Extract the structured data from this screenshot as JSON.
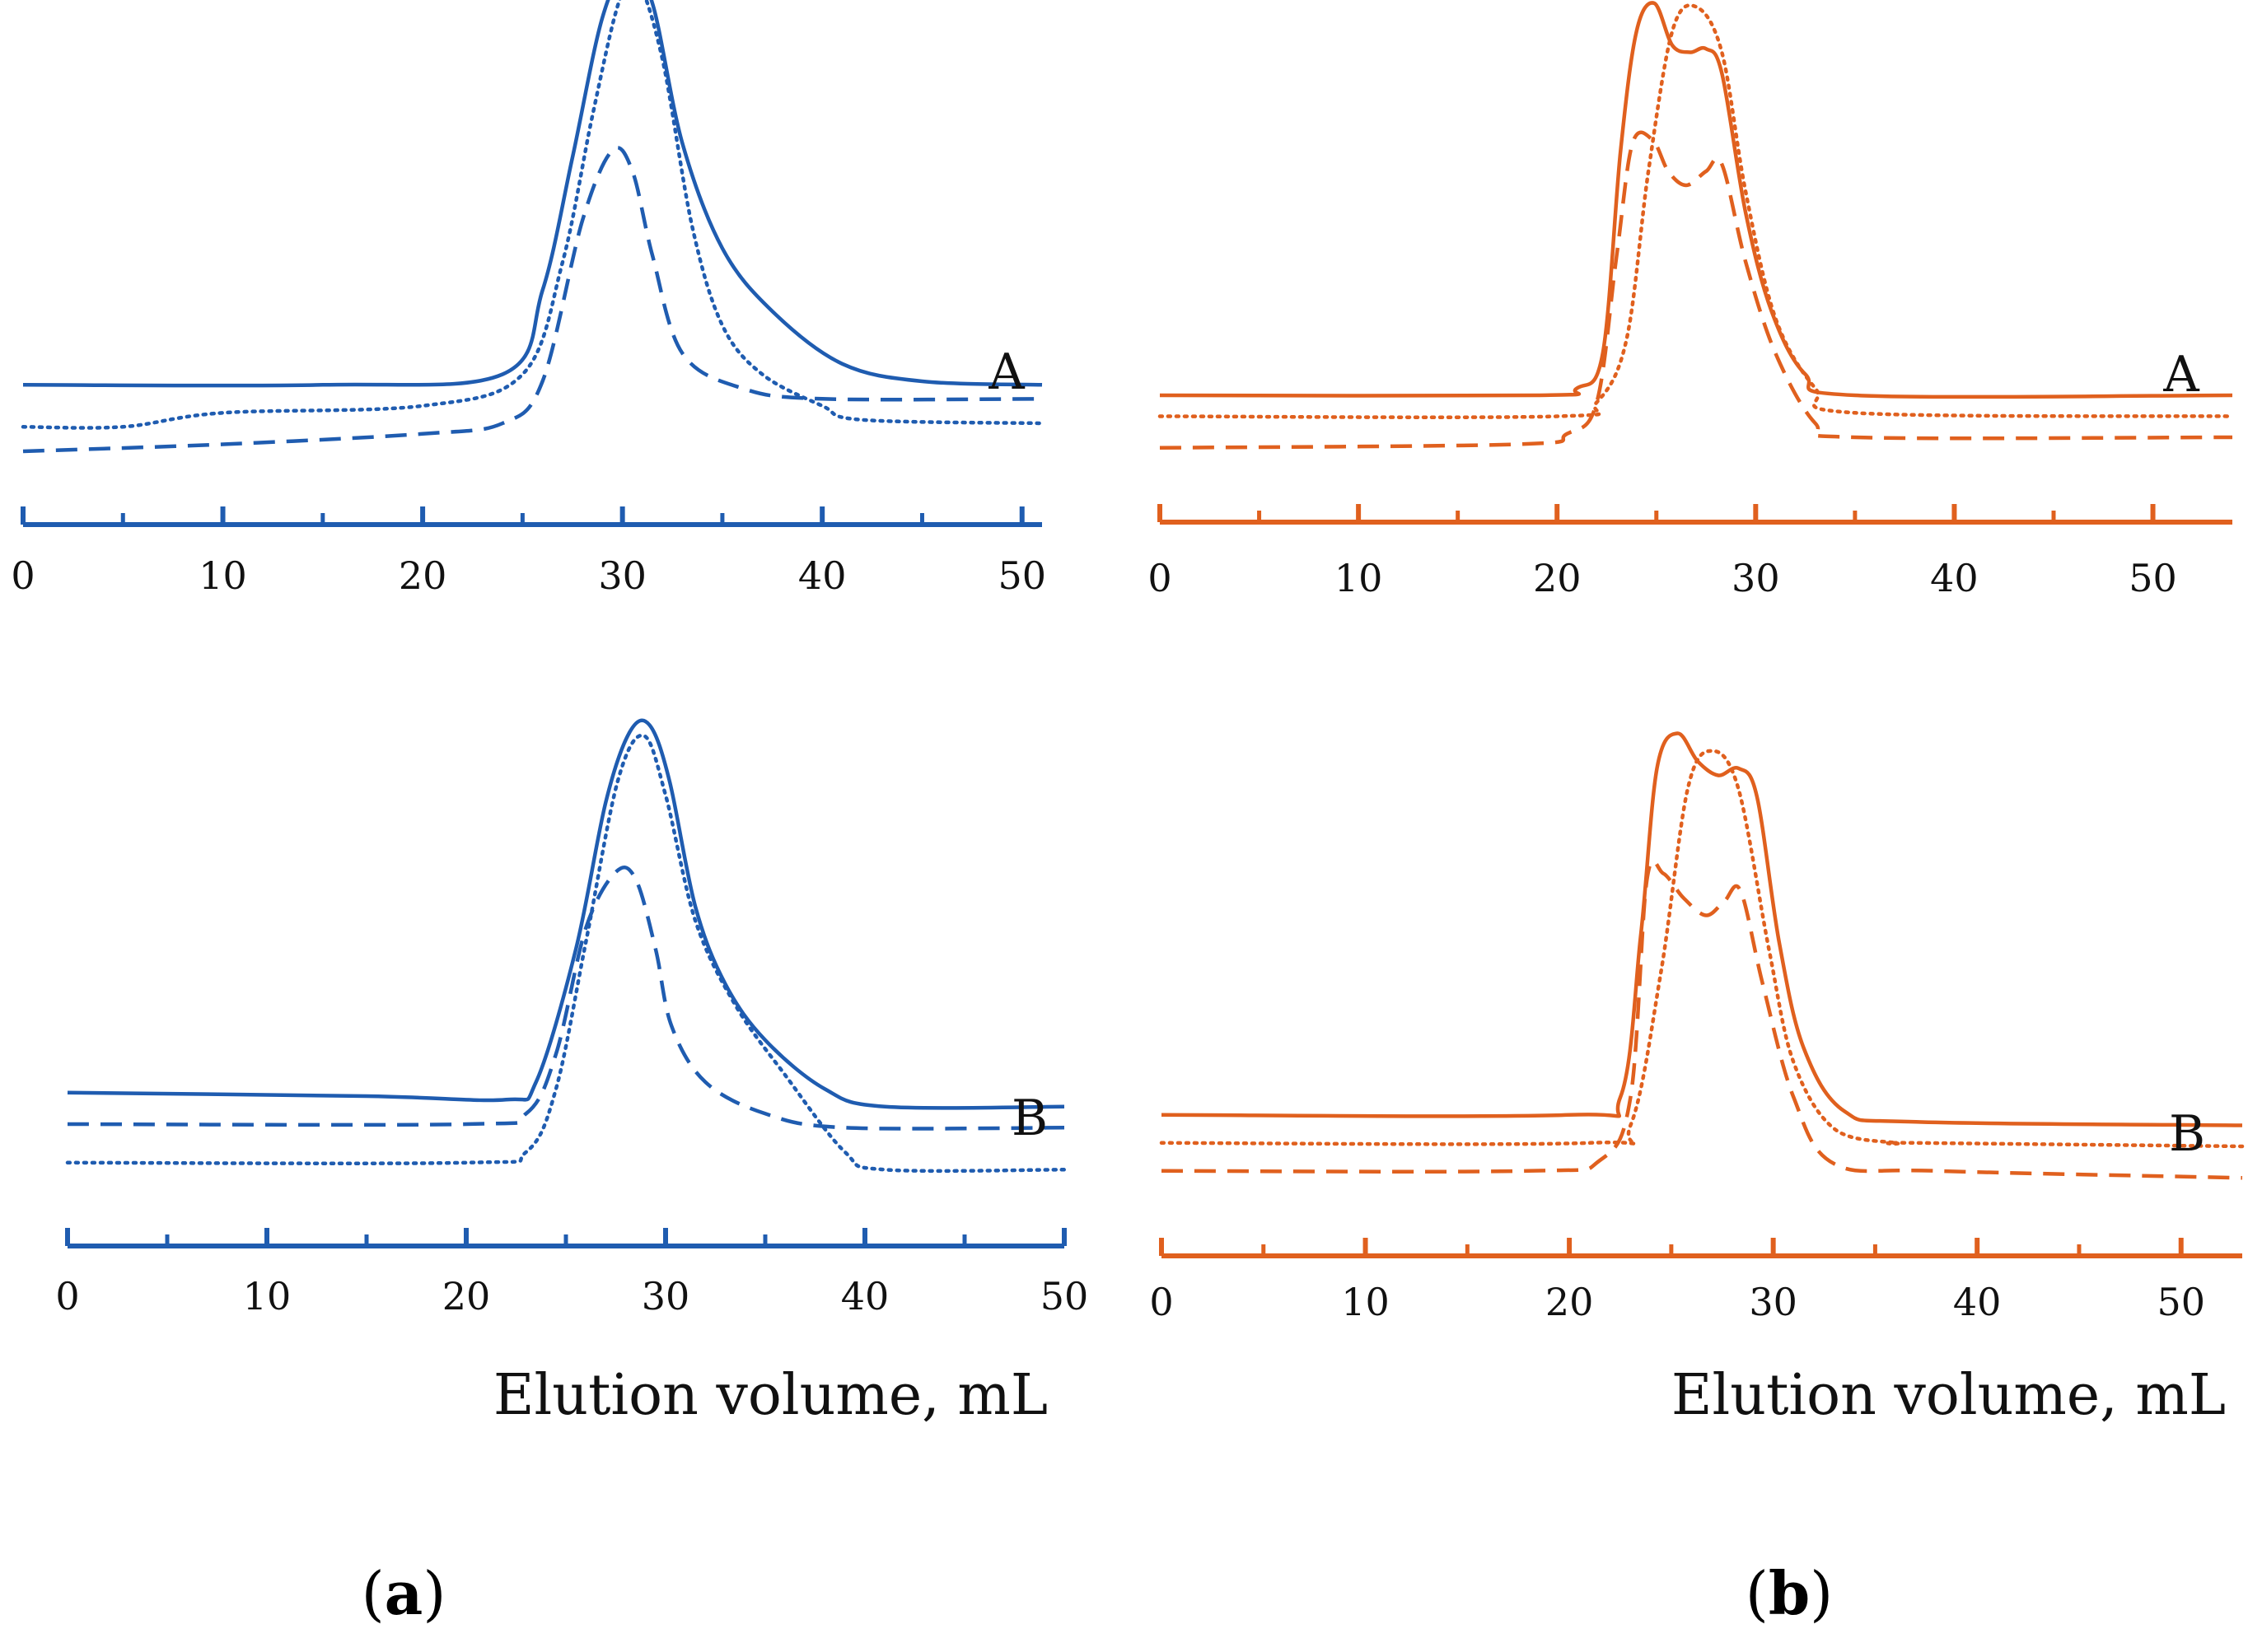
{
  "colors": {
    "blue": "#1f5cb0",
    "orange": "#e0601e"
  },
  "captions": [
    "(a)",
    "(b)"
  ],
  "chart_data": [
    {
      "id": "a-A",
      "type": "line",
      "panel": "(a)",
      "trace_label": "A",
      "xlabel": "",
      "ylabel": "",
      "xlim": [
        0,
        51
      ],
      "x_ticks": [
        0,
        10,
        20,
        30,
        40,
        50
      ],
      "minor_ticks": [
        5,
        15,
        25,
        35,
        45
      ],
      "color": "blue",
      "series": [
        {
          "name": "solid",
          "style": "solid",
          "points": [
            [
              0,
              1.15
            ],
            [
              15,
              1.15
            ],
            [
              24,
              1.3
            ],
            [
              26,
              2.5
            ],
            [
              27.5,
              4.4
            ],
            [
              29,
              6.4
            ],
            [
              30.3,
              7.1
            ],
            [
              31.5,
              6.6
            ],
            [
              33,
              4.6
            ],
            [
              35,
              3.1
            ],
            [
              37.5,
              2.2
            ],
            [
              41,
              1.45
            ],
            [
              45,
              1.2
            ],
            [
              51,
              1.15
            ]
          ]
        },
        {
          "name": "dotted",
          "style": "dotted",
          "points": [
            [
              0,
              0.55
            ],
            [
              5,
              0.55
            ],
            [
              10,
              0.75
            ],
            [
              20,
              0.85
            ],
            [
              25,
              1.3
            ],
            [
              27,
              2.9
            ],
            [
              28.5,
              5.0
            ],
            [
              29.8,
              6.6
            ],
            [
              30.7,
              6.95
            ],
            [
              32,
              5.8
            ],
            [
              33.5,
              3.4
            ],
            [
              35,
              2.0
            ],
            [
              37,
              1.3
            ],
            [
              40,
              0.85
            ],
            [
              42,
              0.65
            ],
            [
              51,
              0.6
            ]
          ]
        },
        {
          "name": "dashed",
          "style": "dashed",
          "points": [
            [
              0,
              0.2
            ],
            [
              10,
              0.3
            ],
            [
              20,
              0.45
            ],
            [
              24,
              0.6
            ],
            [
              26,
              1.2
            ],
            [
              28,
              3.5
            ],
            [
              29.5,
              4.5
            ],
            [
              30.5,
              4.2
            ],
            [
              31.5,
              3.0
            ],
            [
              33,
              1.6
            ],
            [
              36,
              1.1
            ],
            [
              40,
              0.95
            ],
            [
              51,
              0.95
            ]
          ]
        }
      ]
    },
    {
      "id": "a-B",
      "type": "line",
      "panel": "(a)",
      "trace_label": "B",
      "xlabel": "Elution volume, mL",
      "ylabel": "",
      "xlim": [
        0,
        50
      ],
      "x_ticks": [
        0,
        10,
        20,
        30,
        40,
        50
      ],
      "minor_ticks": [
        5,
        15,
        25,
        35,
        45
      ],
      "color": "blue",
      "series": [
        {
          "name": "solid",
          "style": "solid",
          "points": [
            [
              0,
              1.45
            ],
            [
              15,
              1.4
            ],
            [
              22,
              1.35
            ],
            [
              23.5,
              1.6
            ],
            [
              25.5,
              3.5
            ],
            [
              27,
              5.6
            ],
            [
              28.2,
              6.6
            ],
            [
              29.2,
              6.7
            ],
            [
              30.2,
              5.9
            ],
            [
              31.5,
              4.1
            ],
            [
              33,
              3.0
            ],
            [
              35,
              2.2
            ],
            [
              38,
              1.5
            ],
            [
              41,
              1.25
            ],
            [
              50,
              1.25
            ]
          ]
        },
        {
          "name": "dashed",
          "style": "dashed",
          "points": [
            [
              0,
              1.0
            ],
            [
              20,
              1.0
            ],
            [
              23,
              1.15
            ],
            [
              24.5,
              2.0
            ],
            [
              26,
              3.8
            ],
            [
              27.5,
              4.6
            ],
            [
              28.5,
              4.5
            ],
            [
              29.5,
              3.5
            ],
            [
              30.3,
              2.4
            ],
            [
              32,
              1.6
            ],
            [
              35,
              1.15
            ],
            [
              39,
              0.95
            ],
            [
              50,
              0.95
            ]
          ]
        },
        {
          "name": "dotted",
          "style": "dotted",
          "points": [
            [
              0,
              0.45
            ],
            [
              20,
              0.45
            ],
            [
              23,
              0.6
            ],
            [
              24.5,
              1.5
            ],
            [
              26,
              3.6
            ],
            [
              27.6,
              5.9
            ],
            [
              28.9,
              6.55
            ],
            [
              30,
              5.7
            ],
            [
              31.5,
              3.9
            ],
            [
              33.5,
              2.7
            ],
            [
              36,
              1.7
            ],
            [
              39,
              0.6
            ],
            [
              41,
              0.35
            ],
            [
              50,
              0.35
            ]
          ]
        }
      ]
    },
    {
      "id": "b-A",
      "type": "line",
      "panel": "(b)",
      "trace_label": "A",
      "xlabel": "",
      "ylabel": "",
      "xlim": [
        0,
        54
      ],
      "x_ticks": [
        0,
        10,
        20,
        30,
        40,
        50
      ],
      "minor_ticks": [
        5,
        15,
        25,
        35,
        45
      ],
      "color": "orange",
      "series": [
        {
          "name": "solid",
          "style": "solid",
          "points": [
            [
              0,
              1.0
            ],
            [
              19,
              1.0
            ],
            [
              21,
              1.1
            ],
            [
              22.3,
              1.6
            ],
            [
              23.2,
              4.5
            ],
            [
              24,
              6.2
            ],
            [
              24.9,
              6.6
            ],
            [
              25.8,
              6.0
            ],
            [
              26.7,
              5.9
            ],
            [
              27.5,
              5.95
            ],
            [
              28.3,
              5.6
            ],
            [
              29.5,
              3.6
            ],
            [
              30.8,
              2.2
            ],
            [
              32.5,
              1.3
            ],
            [
              35,
              1.0
            ],
            [
              54,
              1.0
            ]
          ]
        },
        {
          "name": "dotted",
          "style": "dotted",
          "points": [
            [
              0,
              0.7
            ],
            [
              20,
              0.7
            ],
            [
              22,
              0.9
            ],
            [
              23.5,
              1.8
            ],
            [
              24.6,
              4.2
            ],
            [
              25.8,
              6.2
            ],
            [
              27,
              6.55
            ],
            [
              28.3,
              5.9
            ],
            [
              29.5,
              3.9
            ],
            [
              31,
              2.1
            ],
            [
              33,
              1.1
            ],
            [
              35,
              0.75
            ],
            [
              54,
              0.7
            ]
          ]
        },
        {
          "name": "dashed",
          "style": "dashed",
          "points": [
            [
              0,
              0.25
            ],
            [
              18,
              0.3
            ],
            [
              20.5,
              0.45
            ],
            [
              22,
              0.9
            ],
            [
              23,
              3.0
            ],
            [
              23.8,
              4.6
            ],
            [
              24.8,
              4.65
            ],
            [
              25.6,
              4.2
            ],
            [
              26.5,
              4.0
            ],
            [
              27.5,
              4.2
            ],
            [
              28.3,
              4.3
            ],
            [
              29.5,
              2.9
            ],
            [
              31,
              1.6
            ],
            [
              33,
              0.6
            ],
            [
              35,
              0.4
            ],
            [
              54,
              0.4
            ]
          ]
        }
      ]
    },
    {
      "id": "b-B",
      "type": "line",
      "panel": "(b)",
      "trace_label": "B",
      "xlabel": "Elution volume, mL",
      "ylabel": "",
      "xlim": [
        0,
        53
      ],
      "x_ticks": [
        0,
        10,
        20,
        30,
        40,
        50
      ],
      "minor_ticks": [
        5,
        15,
        25,
        35,
        45
      ],
      "color": "orange",
      "series": [
        {
          "name": "solid",
          "style": "solid",
          "points": [
            [
              0,
              1.25
            ],
            [
              20,
              1.25
            ],
            [
              22.5,
              1.5
            ],
            [
              23.5,
              3.8
            ],
            [
              24.3,
              6.2
            ],
            [
              25.3,
              6.7
            ],
            [
              26.3,
              6.3
            ],
            [
              27.3,
              6.1
            ],
            [
              28.3,
              6.2
            ],
            [
              29.2,
              5.8
            ],
            [
              30.3,
              3.7
            ],
            [
              31.5,
              2.2
            ],
            [
              33.5,
              1.3
            ],
            [
              37,
              1.15
            ],
            [
              53,
              1.1
            ]
          ]
        },
        {
          "name": "dotted",
          "style": "dotted",
          "points": [
            [
              0,
              0.85
            ],
            [
              21,
              0.85
            ],
            [
              23,
              1.1
            ],
            [
              24.5,
              3.3
            ],
            [
              25.8,
              5.9
            ],
            [
              27,
              6.45
            ],
            [
              28.3,
              5.9
            ],
            [
              29.8,
              3.6
            ],
            [
              31,
              2.0
            ],
            [
              33,
              1.05
            ],
            [
              36,
              0.85
            ],
            [
              37,
              0.85
            ],
            [
              53,
              0.8
            ]
          ]
        },
        {
          "name": "dashed",
          "style": "dashed",
          "points": [
            [
              0,
              0.45
            ],
            [
              18,
              0.45
            ],
            [
              21.5,
              0.6
            ],
            [
              23,
              1.5
            ],
            [
              23.8,
              4.6
            ],
            [
              24.6,
              4.7
            ],
            [
              25.6,
              4.35
            ],
            [
              26.7,
              4.1
            ],
            [
              27.6,
              4.3
            ],
            [
              28.4,
              4.45
            ],
            [
              29.5,
              3.1
            ],
            [
              31,
              1.5
            ],
            [
              33,
              0.55
            ],
            [
              38,
              0.45
            ],
            [
              53,
              0.35
            ]
          ]
        }
      ]
    }
  ]
}
